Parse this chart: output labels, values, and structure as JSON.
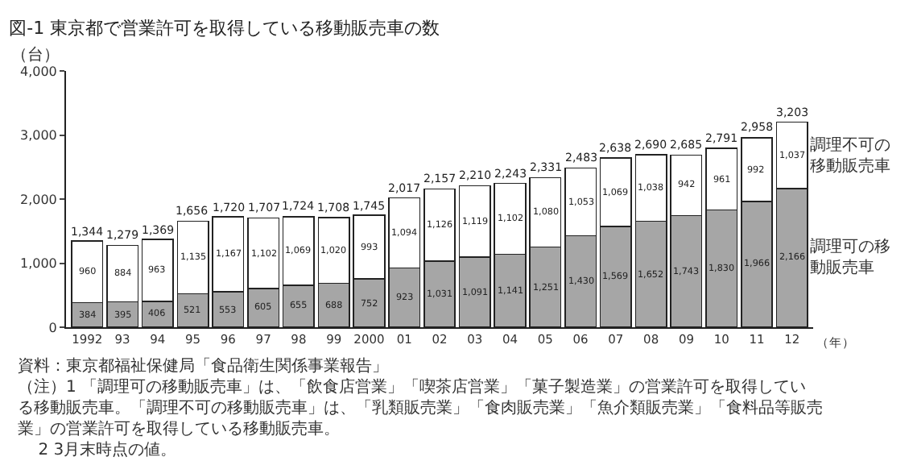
{
  "chart_data": {
    "type": "bar",
    "stacked": true,
    "title": "図-1 東京都で営業許可を取得している移動販売車の数",
    "ylabel": "（台）",
    "categories": [
      "1992",
      "93",
      "94",
      "95",
      "96",
      "97",
      "98",
      "99",
      "2000",
      "01",
      "02",
      "03",
      "04",
      "05",
      "06",
      "07",
      "08",
      "09",
      "10",
      "11",
      "12"
    ],
    "xlabel": "（年）",
    "series": [
      {
        "name": "調理可の移動販売車",
        "color": "#a6a6a6",
        "values": [
          384,
          395,
          406,
          521,
          553,
          605,
          655,
          688,
          752,
          923,
          1031,
          1091,
          1141,
          1251,
          1430,
          1569,
          1652,
          1743,
          1830,
          1966,
          2166
        ],
        "value_labels": [
          "384",
          "395",
          "406",
          "521",
          "553",
          "605",
          "655",
          "688",
          "752",
          "923",
          "1,031",
          "1,091",
          "1,141",
          "1,251",
          "1,430",
          "1,569",
          "1,652",
          "1,743",
          "1,830",
          "1,966",
          "2,166"
        ]
      },
      {
        "name": "調理不可の移動販売車",
        "color": "#ffffff",
        "values": [
          960,
          884,
          963,
          1135,
          1167,
          1102,
          1069,
          1020,
          993,
          1094,
          1126,
          1119,
          1102,
          1080,
          1053,
          1069,
          1038,
          942,
          961,
          992,
          1037
        ],
        "value_labels": [
          "960",
          "884",
          "963",
          "1,135",
          "1,167",
          "1,102",
          "1,069",
          "1,020",
          "993",
          "1,094",
          "1,126",
          "1,119",
          "1,102",
          "1,080",
          "1,053",
          "1,069",
          "1,038",
          "942",
          "961",
          "992",
          "1,037"
        ]
      }
    ],
    "totals": [
      "1,344",
      "1,279",
      "1,369",
      "1,656",
      "1,720",
      "1,707",
      "1,724",
      "1,708",
      "1,745",
      "2,017",
      "2,157",
      "2,210",
      "2,243",
      "2,331",
      "2,483",
      "2,638",
      "2,690",
      "2,685",
      "2,791",
      "2,958",
      "3,203"
    ],
    "ylim": [
      0,
      4000
    ],
    "yticks": [
      0,
      {
        "value": 1000,
        "label": "1,000"
      },
      {
        "value": 2000,
        "label": "2,000"
      },
      {
        "value": 3000,
        "label": "3,000"
      },
      {
        "value": 4000,
        "label": "4,000"
      }
    ],
    "grid": false,
    "legend": false,
    "annotations": [
      "資料：東京都福祉保健局「食品衛生関係事業報告」",
      "（注）1 「調理可の移動販売車」は、「飲食店営業」「喫茶店営業」「菓子製造業」の営業許可を取得している移動販売車。「調理不可の移動販売車」は、「乳類販売業」「食肉販売業」「魚介類販売業」「食料品等販売業」の営業許可を取得している移動販売車。",
      "2 3月末時点の値。"
    ]
  }
}
